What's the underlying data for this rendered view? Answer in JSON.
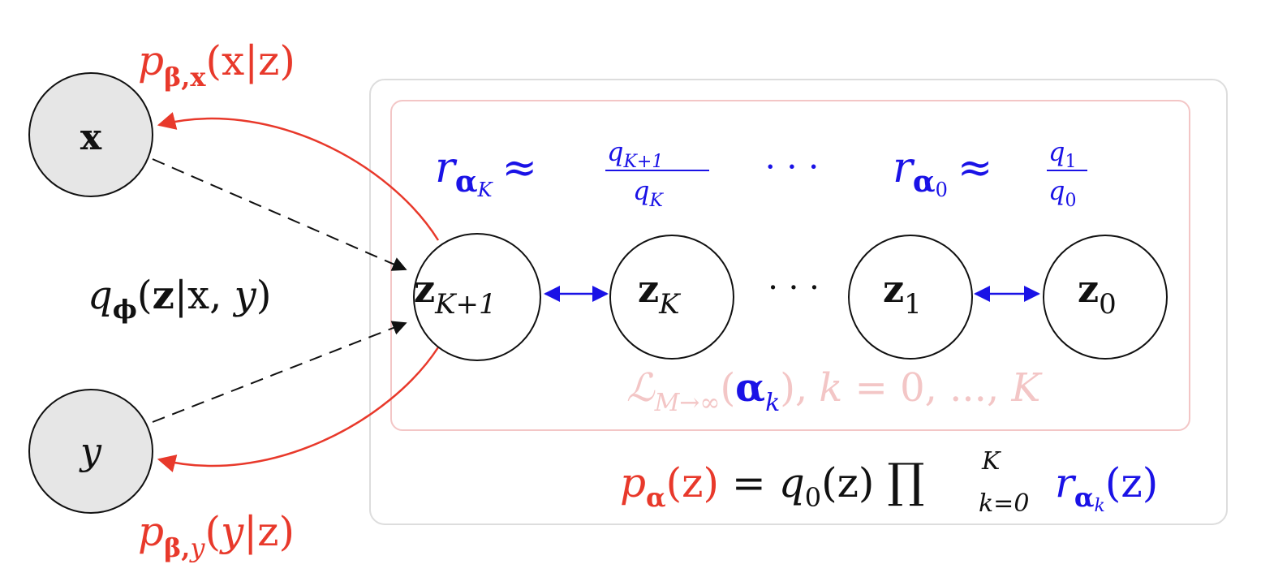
{
  "diagram": {
    "observed_nodes": {
      "x": "x",
      "y": "y"
    },
    "latent_nodes": {
      "z_K1": {
        "base": "z",
        "sub": "K+1"
      },
      "z_K": {
        "base": "z",
        "sub": "K"
      },
      "dots": "· · ·",
      "z_1": {
        "base": "z",
        "sub": "1"
      },
      "z_0": {
        "base": "z",
        "sub": "0"
      }
    },
    "labels": {
      "p_beta_x": {
        "p": "p",
        "sub": "β,x",
        "args": "(x|z)"
      },
      "p_beta_y": {
        "p": "p",
        "sub": "β,",
        "sub_y": "y",
        "open": "(",
        "y": "y",
        "bar_z": "|z)"
      },
      "q_phi": {
        "q": "q",
        "sub": "ϕ",
        "open": "(",
        "z": "z",
        "mid": "|x, ",
        "y": "y",
        "close": ")"
      },
      "r_alpha_K": {
        "r": "r",
        "sub": "α",
        "subsub": "K",
        "approx": "≈",
        "num_q": "q",
        "num_sub": "K+1",
        "den_q": "q",
        "den_sub": "K"
      },
      "top_dots": "· · ·",
      "r_alpha_0": {
        "r": "r",
        "sub": "α",
        "subsub": "0",
        "approx": "≈",
        "num_q": "q",
        "num_sub": "1",
        "den_q": "q",
        "den_sub": "0"
      },
      "loss": {
        "L": "ℒ",
        "sub": "M→∞",
        "open": "(",
        "alpha": "α",
        "alpha_sub": "k",
        "close": "),",
        "k": "k",
        "eq": " = 0, ..., ",
        "K": "K"
      },
      "prior": {
        "p": "p",
        "sub": "α",
        "arg": "(z)",
        "eq": " = ",
        "q": "q",
        "q_sub": "0",
        "q_arg": "(z) ",
        "prod": "∏",
        "prod_sup": "K",
        "prod_sub": "k=0",
        "r": "r",
        "r_sub": "α",
        "r_subsub": "k",
        "r_arg": "(z)"
      }
    },
    "colors": {
      "red": "#e8392b",
      "blue": "#1a12e6",
      "pink": "#f3c6c6",
      "observed_fill": "#e6e6e6",
      "outer_box": "#dddddd"
    }
  }
}
